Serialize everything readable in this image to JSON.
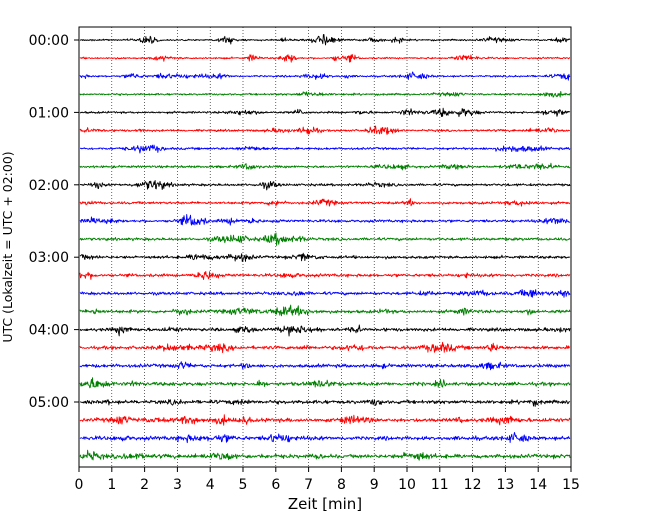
{
  "chart_data": {
    "type": "line",
    "xlabel": "Zeit  [min]",
    "ylabel": "UTC (Lokalzeit = UTC + 02:00)",
    "xlim": [
      0,
      15
    ],
    "x_ticks": [
      "0",
      "1",
      "2",
      "3",
      "4",
      "5",
      "6",
      "7",
      "8",
      "9",
      "10",
      "11",
      "12",
      "13",
      "14",
      "15"
    ],
    "y_ticks": [
      "00:00",
      "01:00",
      "02:00",
      "03:00",
      "04:00",
      "05:00"
    ],
    "grid": "vertical dotted",
    "row_interval_minutes": 15,
    "row_count": 24,
    "colors": [
      "#000000",
      "#ff0000",
      "#0000ff",
      "#008000"
    ]
  }
}
